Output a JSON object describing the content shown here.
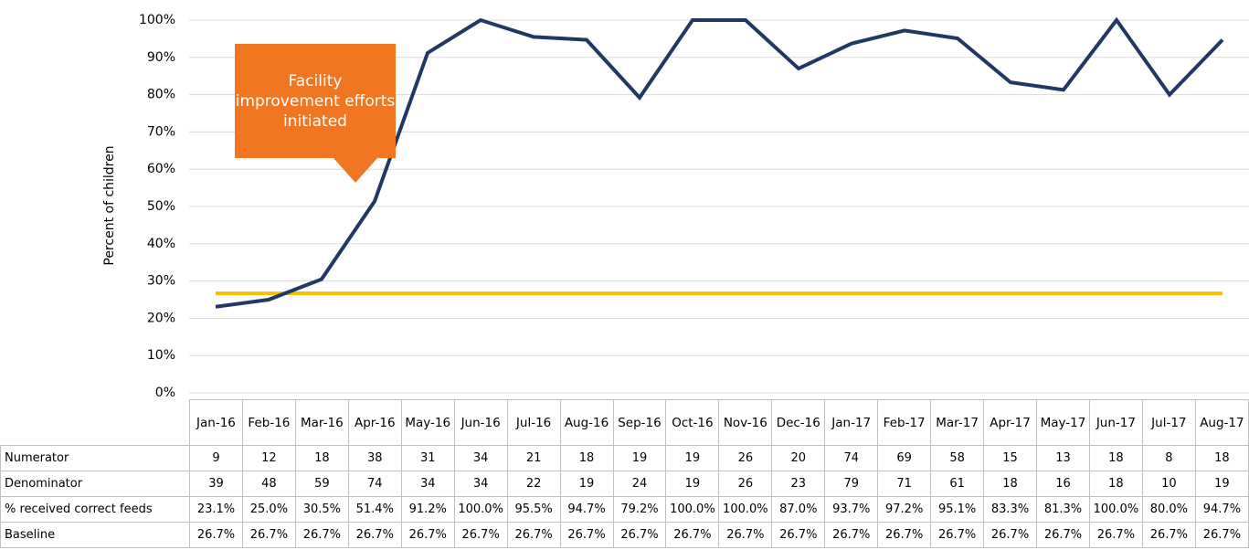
{
  "chart_data": {
    "type": "line",
    "y_axis_label": "Percent of children",
    "annotation": "Facility improvement efforts initiated",
    "categories": [
      "Jan-16",
      "Feb-16",
      "Mar-16",
      "Apr-16",
      "May-16",
      "Jun-16",
      "Jul-16",
      "Aug-16",
      "Sep-16",
      "Oct-16",
      "Nov-16",
      "Dec-16",
      "Jan-17",
      "Feb-17",
      "Mar-17",
      "Apr-17",
      "May-17",
      "Jun-17",
      "Jul-17",
      "Aug-17"
    ],
    "ylim": [
      0,
      100
    ],
    "yticks": [
      {
        "value": 0,
        "label": "0%"
      },
      {
        "value": 10,
        "label": "10%"
      },
      {
        "value": 20,
        "label": "20%"
      },
      {
        "value": 30,
        "label": "30%"
      },
      {
        "value": 40,
        "label": "40%"
      },
      {
        "value": 50,
        "label": "50%"
      },
      {
        "value": 60,
        "label": "60%"
      },
      {
        "value": 70,
        "label": "70%"
      },
      {
        "value": 80,
        "label": "80%"
      },
      {
        "value": 90,
        "label": "90%"
      },
      {
        "value": 100,
        "label": "100%"
      }
    ],
    "grid": true,
    "table_rows": [
      {
        "name": "Numerator",
        "values": [
          9,
          12,
          18,
          38,
          31,
          34,
          21,
          18,
          19,
          19,
          26,
          20,
          74,
          69,
          58,
          15,
          13,
          18,
          8,
          18
        ]
      },
      {
        "name": "Denominator",
        "values": [
          39,
          48,
          59,
          74,
          34,
          34,
          22,
          19,
          24,
          19,
          26,
          23,
          79,
          71,
          61,
          18,
          16,
          18,
          10,
          19
        ]
      }
    ],
    "series": [
      {
        "name": "% received correct feeds",
        "color": "#203864",
        "values": [
          23.1,
          25.0,
          30.5,
          51.4,
          91.2,
          100.0,
          95.5,
          94.7,
          79.2,
          100.0,
          100.0,
          87.0,
          93.7,
          97.2,
          95.1,
          83.3,
          81.3,
          100.0,
          80.0,
          94.7
        ],
        "value_labels": [
          "23.1%",
          "25.0%",
          "30.5%",
          "51.4%",
          "91.2%",
          "100.0%",
          "95.5%",
          "94.7%",
          "79.2%",
          "100.0%",
          "100.0%",
          "87.0%",
          "93.7%",
          "97.2%",
          "95.1%",
          "83.3%",
          "81.3%",
          "100.0%",
          "80.0%",
          "94.7%"
        ]
      },
      {
        "name": "Baseline",
        "color": "#f5c000",
        "values": [
          26.7,
          26.7,
          26.7,
          26.7,
          26.7,
          26.7,
          26.7,
          26.7,
          26.7,
          26.7,
          26.7,
          26.7,
          26.7,
          26.7,
          26.7,
          26.7,
          26.7,
          26.7,
          26.7,
          26.7
        ],
        "value_labels": [
          "26.7%",
          "26.7%",
          "26.7%",
          "26.7%",
          "26.7%",
          "26.7%",
          "26.7%",
          "26.7%",
          "26.7%",
          "26.7%",
          "26.7%",
          "26.7%",
          "26.7%",
          "26.7%",
          "26.7%",
          "26.7%",
          "26.7%",
          "26.7%",
          "26.7%",
          "26.7%"
        ]
      }
    ]
  }
}
